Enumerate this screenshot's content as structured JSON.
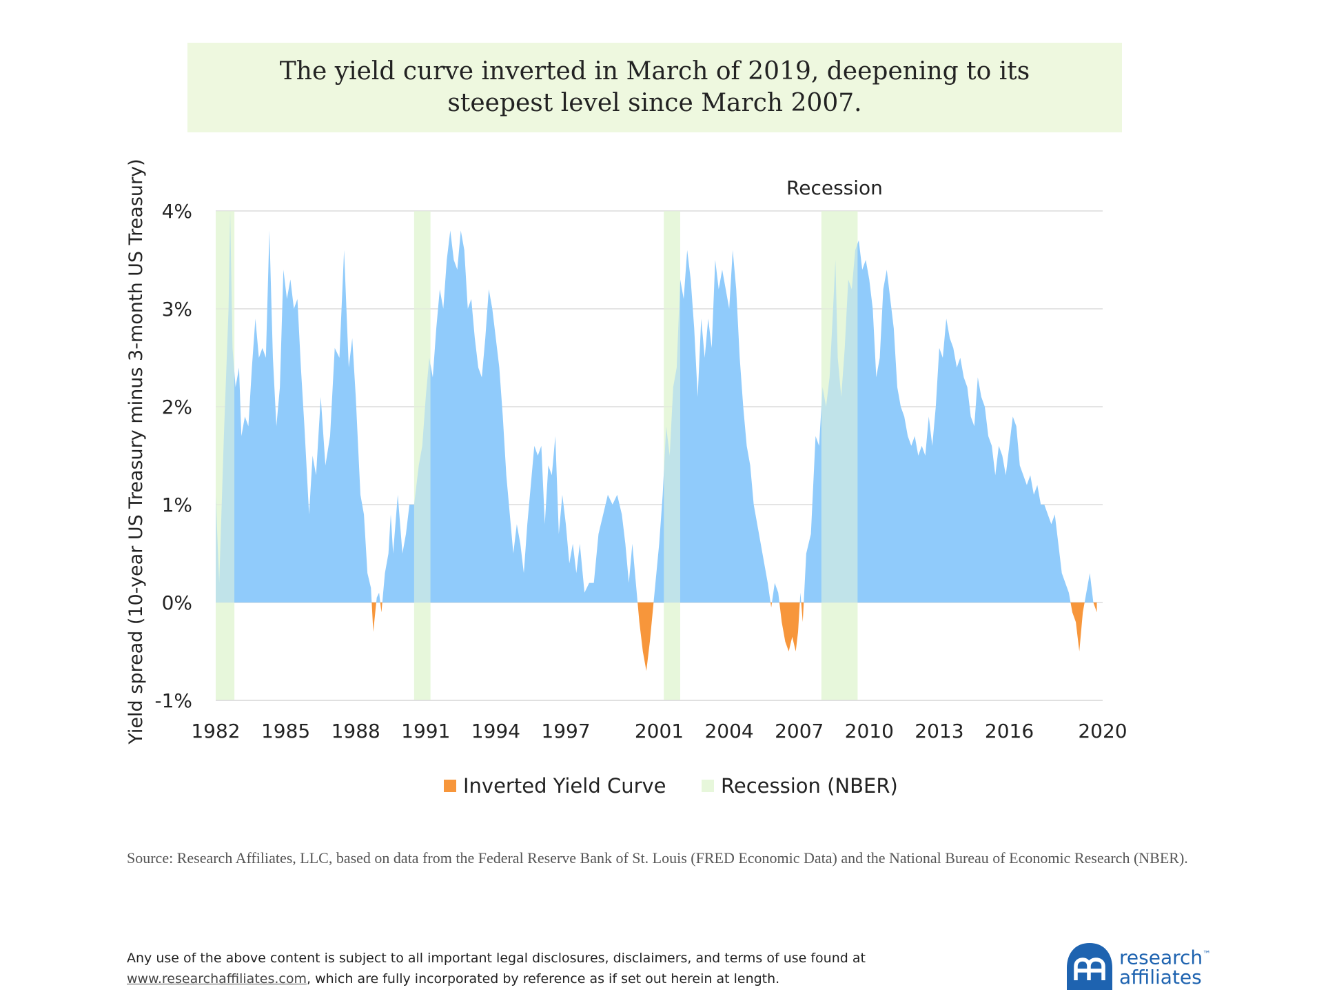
{
  "title": {
    "line1": "The yield curve inverted in March of 2019, deepening to its",
    "line2": "steepest level since March 2007."
  },
  "chart_data": {
    "type": "area",
    "ylabel": "Yield spread (10-year US Treasury minus 3-month US Treasury)",
    "ylim": [
      -1,
      4
    ],
    "yticks": [
      4,
      3,
      2,
      1,
      0,
      -1
    ],
    "ytick_labels": [
      "4%",
      "3%",
      "2%",
      "1%",
      "0%",
      "-1%"
    ],
    "xlim": [
      1982,
      2020
    ],
    "xticks": [
      1982,
      1985,
      1988,
      1991,
      1994,
      1997,
      2001,
      2004,
      2007,
      2010,
      2013,
      2016,
      2020
    ],
    "annotation": "Recession",
    "grid": "horizontal",
    "colors": {
      "positive": "#90cbfb",
      "inverted": "#f7963b",
      "recession": "#e7f7db",
      "grid": "#dcdcdc"
    },
    "legend": {
      "position": "bottom",
      "items": [
        {
          "label": "Inverted Yield Curve",
          "color": "#f7963b"
        },
        {
          "label": "Recession (NBER)",
          "color": "#e7f7db"
        }
      ]
    },
    "recessions": [
      [
        1982.0,
        1982.8
      ],
      [
        1990.5,
        1991.2
      ],
      [
        2001.2,
        2001.9
      ],
      [
        2007.95,
        2009.5
      ]
    ],
    "series": [
      {
        "values": [
          [
            1982.0,
            1.1
          ],
          [
            1982.15,
            0.2
          ],
          [
            1982.35,
            1.7
          ],
          [
            1982.55,
            3.0
          ],
          [
            1982.62,
            4.0
          ],
          [
            1982.72,
            2.6
          ],
          [
            1982.85,
            2.2
          ],
          [
            1983.0,
            2.4
          ],
          [
            1983.1,
            1.7
          ],
          [
            1983.25,
            1.9
          ],
          [
            1983.4,
            1.8
          ],
          [
            1983.55,
            2.4
          ],
          [
            1983.7,
            2.9
          ],
          [
            1983.85,
            2.5
          ],
          [
            1984.0,
            2.6
          ],
          [
            1984.15,
            2.5
          ],
          [
            1984.3,
            3.8
          ],
          [
            1984.45,
            2.5
          ],
          [
            1984.6,
            1.8
          ],
          [
            1984.75,
            2.2
          ],
          [
            1984.9,
            3.4
          ],
          [
            1985.05,
            3.1
          ],
          [
            1985.2,
            3.3
          ],
          [
            1985.35,
            3.0
          ],
          [
            1985.5,
            3.1
          ],
          [
            1985.65,
            2.4
          ],
          [
            1985.8,
            1.8
          ],
          [
            1986.0,
            0.9
          ],
          [
            1986.15,
            1.5
          ],
          [
            1986.3,
            1.3
          ],
          [
            1986.5,
            2.1
          ],
          [
            1986.7,
            1.4
          ],
          [
            1986.9,
            1.7
          ],
          [
            1987.1,
            2.6
          ],
          [
            1987.3,
            2.5
          ],
          [
            1987.5,
            3.6
          ],
          [
            1987.7,
            2.4
          ],
          [
            1987.85,
            2.7
          ],
          [
            1988.0,
            2.1
          ],
          [
            1988.2,
            1.1
          ],
          [
            1988.35,
            0.9
          ],
          [
            1988.5,
            0.3
          ],
          [
            1988.65,
            0.15
          ],
          [
            1988.75,
            -0.3
          ],
          [
            1988.9,
            0.05
          ],
          [
            1989.0,
            0.1
          ],
          [
            1989.1,
            -0.1
          ],
          [
            1989.25,
            0.3
          ],
          [
            1989.4,
            0.5
          ],
          [
            1989.5,
            0.9
          ],
          [
            1989.6,
            0.5
          ],
          [
            1989.8,
            1.1
          ],
          [
            1990.0,
            0.5
          ],
          [
            1990.15,
            0.7
          ],
          [
            1990.3,
            1.0
          ],
          [
            1990.5,
            1.0
          ],
          [
            1990.7,
            1.4
          ],
          [
            1990.85,
            1.6
          ],
          [
            1991.0,
            2.1
          ],
          [
            1991.15,
            2.5
          ],
          [
            1991.3,
            2.3
          ],
          [
            1991.45,
            2.8
          ],
          [
            1991.6,
            3.2
          ],
          [
            1991.75,
            3.0
          ],
          [
            1991.9,
            3.5
          ],
          [
            1992.05,
            3.8
          ],
          [
            1992.2,
            3.5
          ],
          [
            1992.35,
            3.4
          ],
          [
            1992.5,
            3.8
          ],
          [
            1992.65,
            3.6
          ],
          [
            1992.8,
            3.0
          ],
          [
            1992.95,
            3.1
          ],
          [
            1993.1,
            2.7
          ],
          [
            1993.25,
            2.4
          ],
          [
            1993.4,
            2.3
          ],
          [
            1993.55,
            2.7
          ],
          [
            1993.7,
            3.2
          ],
          [
            1993.85,
            3.0
          ],
          [
            1994.0,
            2.7
          ],
          [
            1994.15,
            2.4
          ],
          [
            1994.3,
            1.9
          ],
          [
            1994.45,
            1.3
          ],
          [
            1994.6,
            0.9
          ],
          [
            1994.75,
            0.5
          ],
          [
            1994.9,
            0.8
          ],
          [
            1995.05,
            0.6
          ],
          [
            1995.2,
            0.3
          ],
          [
            1995.35,
            0.8
          ],
          [
            1995.5,
            1.2
          ],
          [
            1995.65,
            1.6
          ],
          [
            1995.8,
            1.5
          ],
          [
            1995.95,
            1.6
          ],
          [
            1996.1,
            0.8
          ],
          [
            1996.25,
            1.4
          ],
          [
            1996.4,
            1.3
          ],
          [
            1996.55,
            1.7
          ],
          [
            1996.7,
            0.7
          ],
          [
            1996.85,
            1.1
          ],
          [
            1997.0,
            0.8
          ],
          [
            1997.15,
            0.4
          ],
          [
            1997.3,
            0.6
          ],
          [
            1997.45,
            0.3
          ],
          [
            1997.6,
            0.6
          ],
          [
            1997.8,
            0.1
          ],
          [
            1998.0,
            0.2
          ],
          [
            1998.2,
            0.2
          ],
          [
            1998.4,
            0.7
          ],
          [
            1998.6,
            0.9
          ],
          [
            1998.8,
            1.1
          ],
          [
            1999.0,
            1.0
          ],
          [
            1999.2,
            1.1
          ],
          [
            1999.4,
            0.9
          ],
          [
            1999.55,
            0.6
          ],
          [
            1999.7,
            0.2
          ],
          [
            1999.85,
            0.6
          ],
          [
            2000.0,
            0.2
          ],
          [
            2000.15,
            -0.2
          ],
          [
            2000.3,
            -0.5
          ],
          [
            2000.45,
            -0.7
          ],
          [
            2000.6,
            -0.4
          ],
          [
            2000.8,
            0.1
          ],
          [
            2001.0,
            0.6
          ],
          [
            2001.15,
            1.1
          ],
          [
            2001.3,
            1.8
          ],
          [
            2001.45,
            1.5
          ],
          [
            2001.6,
            2.2
          ],
          [
            2001.75,
            2.4
          ],
          [
            2001.9,
            3.3
          ],
          [
            2002.05,
            3.1
          ],
          [
            2002.2,
            3.6
          ],
          [
            2002.35,
            3.3
          ],
          [
            2002.5,
            2.8
          ],
          [
            2002.65,
            2.1
          ],
          [
            2002.8,
            2.9
          ],
          [
            2002.95,
            2.5
          ],
          [
            2003.1,
            2.9
          ],
          [
            2003.25,
            2.6
          ],
          [
            2003.4,
            3.5
          ],
          [
            2003.55,
            3.2
          ],
          [
            2003.7,
            3.4
          ],
          [
            2003.85,
            3.2
          ],
          [
            2004.0,
            3.0
          ],
          [
            2004.15,
            3.6
          ],
          [
            2004.3,
            3.2
          ],
          [
            2004.45,
            2.5
          ],
          [
            2004.6,
            2.0
          ],
          [
            2004.75,
            1.6
          ],
          [
            2004.9,
            1.4
          ],
          [
            2005.05,
            1.0
          ],
          [
            2005.2,
            0.8
          ],
          [
            2005.35,
            0.6
          ],
          [
            2005.5,
            0.4
          ],
          [
            2005.65,
            0.2
          ],
          [
            2005.8,
            -0.05
          ],
          [
            2005.95,
            0.2
          ],
          [
            2006.1,
            0.1
          ],
          [
            2006.25,
            -0.2
          ],
          [
            2006.4,
            -0.4
          ],
          [
            2006.55,
            -0.5
          ],
          [
            2006.7,
            -0.35
          ],
          [
            2006.85,
            -0.5
          ],
          [
            2006.95,
            -0.3
          ],
          [
            2007.05,
            0.1
          ],
          [
            2007.15,
            -0.2
          ],
          [
            2007.3,
            0.5
          ],
          [
            2007.5,
            0.7
          ],
          [
            2007.7,
            1.7
          ],
          [
            2007.85,
            1.6
          ],
          [
            2008.0,
            2.2
          ],
          [
            2008.15,
            2.0
          ],
          [
            2008.3,
            2.3
          ],
          [
            2008.45,
            3.0
          ],
          [
            2008.55,
            3.5
          ],
          [
            2008.65,
            2.5
          ],
          [
            2008.8,
            2.1
          ],
          [
            2008.95,
            2.6
          ],
          [
            2009.1,
            3.3
          ],
          [
            2009.25,
            3.2
          ],
          [
            2009.4,
            3.6
          ],
          [
            2009.55,
            3.7
          ],
          [
            2009.7,
            3.4
          ],
          [
            2009.85,
            3.5
          ],
          [
            2010.0,
            3.3
          ],
          [
            2010.15,
            3.0
          ],
          [
            2010.3,
            2.3
          ],
          [
            2010.45,
            2.5
          ],
          [
            2010.6,
            3.2
          ],
          [
            2010.75,
            3.4
          ],
          [
            2010.9,
            3.1
          ],
          [
            2011.05,
            2.8
          ],
          [
            2011.2,
            2.2
          ],
          [
            2011.35,
            2.0
          ],
          [
            2011.5,
            1.9
          ],
          [
            2011.65,
            1.7
          ],
          [
            2011.8,
            1.6
          ],
          [
            2011.95,
            1.7
          ],
          [
            2012.1,
            1.5
          ],
          [
            2012.25,
            1.6
          ],
          [
            2012.4,
            1.5
          ],
          [
            2012.55,
            1.9
          ],
          [
            2012.7,
            1.6
          ],
          [
            2012.85,
            2.0
          ],
          [
            2013.0,
            2.6
          ],
          [
            2013.15,
            2.5
          ],
          [
            2013.3,
            2.9
          ],
          [
            2013.45,
            2.7
          ],
          [
            2013.6,
            2.6
          ],
          [
            2013.75,
            2.4
          ],
          [
            2013.9,
            2.5
          ],
          [
            2014.05,
            2.3
          ],
          [
            2014.2,
            2.2
          ],
          [
            2014.35,
            1.9
          ],
          [
            2014.5,
            1.8
          ],
          [
            2014.65,
            2.3
          ],
          [
            2014.8,
            2.1
          ],
          [
            2014.95,
            2.0
          ],
          [
            2015.1,
            1.7
          ],
          [
            2015.25,
            1.6
          ],
          [
            2015.4,
            1.3
          ],
          [
            2015.55,
            1.6
          ],
          [
            2015.7,
            1.5
          ],
          [
            2015.85,
            1.3
          ],
          [
            2016.0,
            1.6
          ],
          [
            2016.15,
            1.9
          ],
          [
            2016.3,
            1.8
          ],
          [
            2016.45,
            1.4
          ],
          [
            2016.6,
            1.3
          ],
          [
            2016.75,
            1.2
          ],
          [
            2016.9,
            1.3
          ],
          [
            2017.05,
            1.1
          ],
          [
            2017.2,
            1.2
          ],
          [
            2017.35,
            1.0
          ],
          [
            2017.5,
            1.0
          ],
          [
            2017.65,
            0.9
          ],
          [
            2017.8,
            0.8
          ],
          [
            2017.95,
            0.9
          ],
          [
            2018.1,
            0.6
          ],
          [
            2018.25,
            0.3
          ],
          [
            2018.4,
            0.2
          ],
          [
            2018.55,
            0.1
          ],
          [
            2018.7,
            -0.1
          ],
          [
            2018.85,
            -0.2
          ],
          [
            2019.0,
            -0.5
          ],
          [
            2019.15,
            -0.1
          ],
          [
            2019.3,
            0.1
          ],
          [
            2019.45,
            0.3
          ],
          [
            2019.6,
            0.0
          ],
          [
            2019.75,
            -0.1
          ]
        ]
      }
    ]
  },
  "source_text": "Source: Research Affiliates, LLC, based on data from the Federal Reserve Bank of St. Louis (FRED Economic Data) and the National Bureau of Economic Research (NBER).",
  "disclaimer": {
    "text": "Any use of the above content is subject to all important legal disclosures, disclaimers, and terms of use found at",
    "link": "www.researchaffiliates.com",
    "suffix": ",  which are fully incorporated by reference as if set out herein at length."
  },
  "logo": {
    "line1": "research",
    "tm": "™",
    "line2": "affiliates",
    "icon": "ra-monogram-icon",
    "color": "#1e63b0"
  }
}
